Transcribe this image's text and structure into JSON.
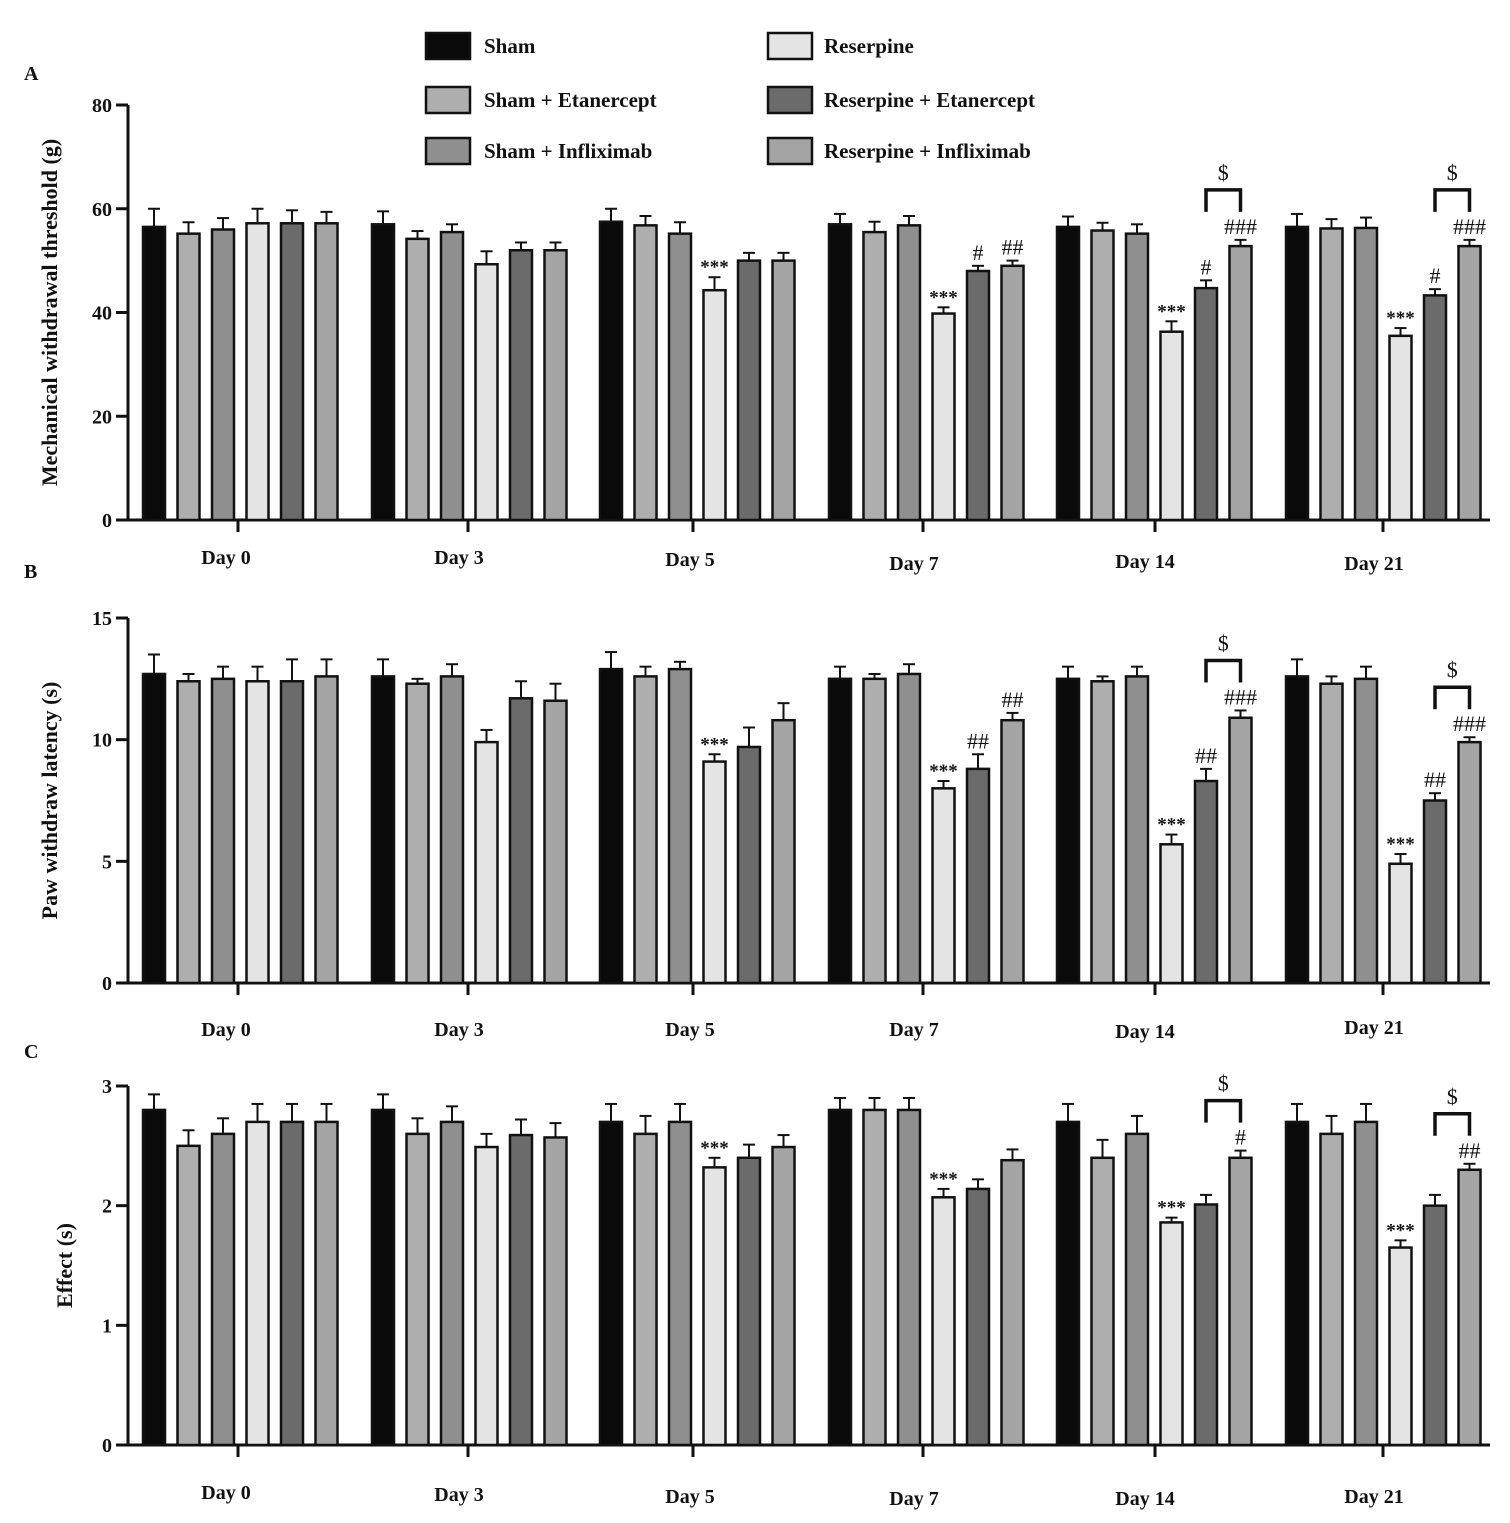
{
  "chart_data": [
    {
      "type": "bar",
      "panel": "A",
      "ylabel": "Mechanical withdrawal threshold (g)",
      "xlabel": "",
      "ylim": [
        0,
        80
      ],
      "yticks": [
        "0",
        "20",
        "40",
        "60",
        "80"
      ],
      "categories": [
        "Day 0",
        "Day 3",
        "Day 5",
        "Day 7",
        "Day 14",
        "Day 21"
      ],
      "series": [
        {
          "name": "Sham",
          "color": "#0a0a0a",
          "values": [
            56.5,
            57,
            57.5,
            57,
            56.5,
            56.5
          ],
          "errors": [
            3.5,
            2.5,
            2.5,
            2,
            2,
            2.5
          ]
        },
        {
          "name": "Sham + Etanercept",
          "color": "#aeaeae",
          "values": [
            55.2,
            54.2,
            56.8,
            55.5,
            55.8,
            56.2
          ],
          "errors": [
            2.2,
            1.5,
            1.8,
            2,
            1.5,
            1.8
          ]
        },
        {
          "name": "Sham + Infliximab",
          "color": "#8f8f8f",
          "values": [
            56,
            55.5,
            55.2,
            56.8,
            55.2,
            56.3
          ],
          "errors": [
            2.2,
            1.5,
            2.2,
            1.8,
            1.8,
            2
          ]
        },
        {
          "name": "Reserpine",
          "color": "#e4e4e4",
          "values": [
            57.2,
            49.3,
            44.3,
            39.8,
            36.3,
            35.5
          ],
          "errors": [
            2.8,
            2.5,
            2.5,
            1.2,
            2,
            1.5
          ]
        },
        {
          "name": "Reserpine + Etanercept",
          "color": "#6b6b6b",
          "values": [
            57.2,
            52,
            50,
            48,
            44.7,
            43.3
          ],
          "errors": [
            2.5,
            1.5,
            1.5,
            1,
            1.5,
            1.2
          ]
        },
        {
          "name": "Reserpine + Infliximab",
          "color": "#a4a4a4",
          "values": [
            57.2,
            52,
            50,
            49,
            52.8,
            52.8
          ],
          "errors": [
            2.2,
            1.5,
            1.5,
            1,
            1.2,
            1.2
          ]
        }
      ],
      "annotations": [
        {
          "category": "Day 5",
          "series": "Reserpine",
          "text": "***"
        },
        {
          "category": "Day 7",
          "series": "Reserpine",
          "text": "***"
        },
        {
          "category": "Day 7",
          "series": "Reserpine + Etanercept",
          "text": "#"
        },
        {
          "category": "Day 7",
          "series": "Reserpine + Infliximab",
          "text": "##"
        },
        {
          "category": "Day 14",
          "series": "Reserpine",
          "text": "***"
        },
        {
          "category": "Day 14",
          "series": "Reserpine + Etanercept",
          "text": "#"
        },
        {
          "category": "Day 14",
          "series": "Reserpine + Infliximab",
          "text": "###"
        },
        {
          "category": "Day 21",
          "series": "Reserpine",
          "text": "***"
        },
        {
          "category": "Day 21",
          "series": "Reserpine + Etanercept",
          "text": "#"
        },
        {
          "category": "Day 21",
          "series": "Reserpine + Infliximab",
          "text": "###"
        }
      ],
      "brackets": [
        {
          "category": "Day 14",
          "from": "Reserpine + Etanercept",
          "to": "Reserpine + Infliximab",
          "text": "$"
        },
        {
          "category": "Day 21",
          "from": "Reserpine + Etanercept",
          "to": "Reserpine + Infliximab",
          "text": "$"
        }
      ]
    },
    {
      "type": "bar",
      "panel": "B",
      "ylabel": "Paw withdraw latency (s)",
      "xlabel": "",
      "ylim": [
        0,
        15
      ],
      "yticks": [
        "0",
        "5",
        "10",
        "15"
      ],
      "categories": [
        "Day 0",
        "Day 3",
        "Day 5",
        "Day 7",
        "Day 14",
        "Day 21"
      ],
      "series": [
        {
          "name": "Sham",
          "color": "#0a0a0a",
          "values": [
            12.7,
            12.6,
            12.9,
            12.5,
            12.5,
            12.6
          ],
          "errors": [
            0.8,
            0.7,
            0.7,
            0.5,
            0.5,
            0.7
          ]
        },
        {
          "name": "Sham + Etanercept",
          "color": "#aeaeae",
          "values": [
            12.4,
            12.3,
            12.6,
            12.5,
            12.4,
            12.3
          ],
          "errors": [
            0.3,
            0.2,
            0.4,
            0.2,
            0.2,
            0.3
          ]
        },
        {
          "name": "Sham + Infliximab",
          "color": "#8f8f8f",
          "values": [
            12.5,
            12.6,
            12.9,
            12.7,
            12.6,
            12.5
          ],
          "errors": [
            0.5,
            0.5,
            0.3,
            0.4,
            0.4,
            0.5
          ]
        },
        {
          "name": "Reserpine",
          "color": "#e4e4e4",
          "values": [
            12.4,
            9.9,
            9.1,
            8.0,
            5.7,
            4.9
          ],
          "errors": [
            0.6,
            0.5,
            0.3,
            0.3,
            0.4,
            0.4
          ]
        },
        {
          "name": "Reserpine + Etanercept",
          "color": "#6b6b6b",
          "values": [
            12.4,
            11.7,
            9.7,
            8.8,
            8.3,
            7.5
          ],
          "errors": [
            0.9,
            0.7,
            0.8,
            0.6,
            0.5,
            0.3
          ]
        },
        {
          "name": "Reserpine + Infliximab",
          "color": "#a4a4a4",
          "values": [
            12.6,
            11.6,
            10.8,
            10.8,
            10.9,
            9.9
          ],
          "errors": [
            0.7,
            0.7,
            0.7,
            0.3,
            0.3,
            0.2
          ]
        }
      ],
      "annotations": [
        {
          "category": "Day 5",
          "series": "Reserpine",
          "text": "***"
        },
        {
          "category": "Day 7",
          "series": "Reserpine",
          "text": "***"
        },
        {
          "category": "Day 7",
          "series": "Reserpine + Etanercept",
          "text": "##"
        },
        {
          "category": "Day 7",
          "series": "Reserpine + Infliximab",
          "text": "##"
        },
        {
          "category": "Day 14",
          "series": "Reserpine",
          "text": "***"
        },
        {
          "category": "Day 14",
          "series": "Reserpine + Etanercept",
          "text": "##"
        },
        {
          "category": "Day 14",
          "series": "Reserpine + Infliximab",
          "text": "###"
        },
        {
          "category": "Day 21",
          "series": "Reserpine",
          "text": "***"
        },
        {
          "category": "Day 21",
          "series": "Reserpine + Etanercept",
          "text": "##"
        },
        {
          "category": "Day 21",
          "series": "Reserpine + Infliximab",
          "text": "###"
        }
      ],
      "brackets": [
        {
          "category": "Day 14",
          "from": "Reserpine + Etanercept",
          "to": "Reserpine + Infliximab",
          "text": "$"
        },
        {
          "category": "Day 21",
          "from": "Reserpine + Etanercept",
          "to": "Reserpine + Infliximab",
          "text": "$"
        }
      ]
    },
    {
      "type": "bar",
      "panel": "C",
      "ylabel": "Effect (s)",
      "xlabel": "",
      "ylim": [
        0,
        3
      ],
      "yticks": [
        "0",
        "1",
        "2",
        "3"
      ],
      "categories": [
        "Day 0",
        "Day 3",
        "Day 5",
        "Day 7",
        "Day 14",
        "Day 21"
      ],
      "series": [
        {
          "name": "Sham",
          "color": "#0a0a0a",
          "values": [
            2.8,
            2.8,
            2.7,
            2.8,
            2.7,
            2.7
          ],
          "errors": [
            0.13,
            0.13,
            0.15,
            0.1,
            0.15,
            0.15
          ]
        },
        {
          "name": "Sham + Etanercept",
          "color": "#aeaeae",
          "values": [
            2.5,
            2.6,
            2.6,
            2.8,
            2.4,
            2.6
          ],
          "errors": [
            0.13,
            0.13,
            0.15,
            0.1,
            0.15,
            0.15
          ]
        },
        {
          "name": "Sham + Infliximab",
          "color": "#8f8f8f",
          "values": [
            2.6,
            2.7,
            2.7,
            2.8,
            2.6,
            2.7
          ],
          "errors": [
            0.13,
            0.13,
            0.15,
            0.1,
            0.15,
            0.15
          ]
        },
        {
          "name": "Reserpine",
          "color": "#e4e4e4",
          "values": [
            2.7,
            2.49,
            2.32,
            2.07,
            1.86,
            1.65
          ],
          "errors": [
            0.15,
            0.11,
            0.08,
            0.07,
            0.04,
            0.06
          ]
        },
        {
          "name": "Reserpine + Etanercept",
          "color": "#6b6b6b",
          "values": [
            2.7,
            2.59,
            2.4,
            2.14,
            2.01,
            2.0
          ],
          "errors": [
            0.15,
            0.13,
            0.11,
            0.08,
            0.08,
            0.09
          ]
        },
        {
          "name": "Reserpine + Infliximab",
          "color": "#a4a4a4",
          "values": [
            2.7,
            2.57,
            2.49,
            2.38,
            2.4,
            2.3
          ],
          "errors": [
            0.15,
            0.12,
            0.1,
            0.09,
            0.06,
            0.05
          ]
        }
      ],
      "annotations": [
        {
          "category": "Day 5",
          "series": "Reserpine",
          "text": "***"
        },
        {
          "category": "Day 7",
          "series": "Reserpine",
          "text": "***"
        },
        {
          "category": "Day 14",
          "series": "Reserpine",
          "text": "***"
        },
        {
          "category": "Day 14",
          "series": "Reserpine + Infliximab",
          "text": "#"
        },
        {
          "category": "Day 21",
          "series": "Reserpine",
          "text": "***"
        },
        {
          "category": "Day 21",
          "series": "Reserpine + Infliximab",
          "text": "##"
        }
      ],
      "brackets": [
        {
          "category": "Day 14",
          "from": "Reserpine + Etanercept",
          "to": "Reserpine + Infliximab",
          "text": "$"
        },
        {
          "category": "Day 21",
          "from": "Reserpine + Etanercept",
          "to": "Reserpine + Infliximab",
          "text": "$"
        }
      ]
    }
  ],
  "legend": {
    "placement": "top-center",
    "items": [
      "Sham",
      "Reserpine",
      "Sham + Etanercept",
      "Reserpine + Etanercept",
      "Sham + Infliximab",
      "Reserpine + Infliximab"
    ]
  }
}
